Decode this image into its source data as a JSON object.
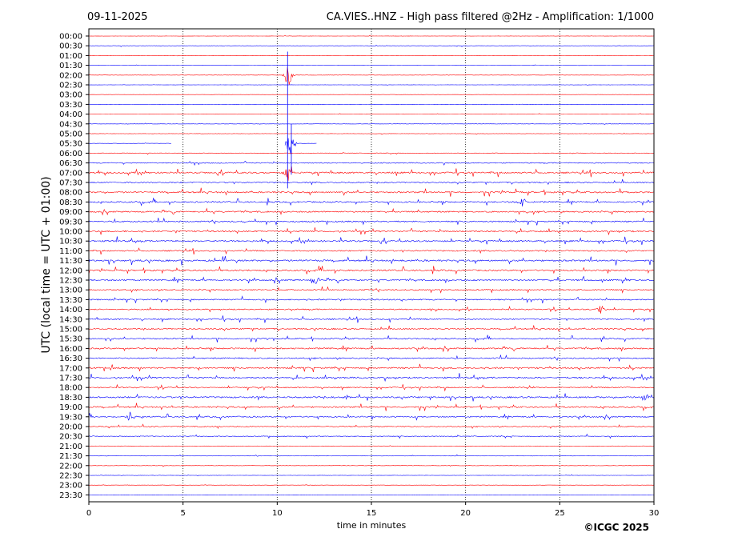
{
  "header": {
    "date": "09-11-2025",
    "title": "CA.VIES..HNZ - High pass filtered @2Hz - Amplification: 1/1000"
  },
  "footer": {
    "copyright": "©ICGC 2025"
  },
  "colors": {
    "odd": "#ff0000",
    "even": "#0000ff",
    "grid": "#000000"
  },
  "chart_data": {
    "type": "line",
    "title": "CA.VIES..HNZ - High pass filtered @2Hz - Amplification: 1/1000",
    "xlabel": "time in minutes",
    "ylabel": "UTC (local time = UTC + 01:00)",
    "xlim": [
      0,
      30
    ],
    "x_ticks": [
      "0",
      "5",
      "10",
      "15",
      "20",
      "25",
      "30"
    ],
    "grid": "vertical dotted at 5-minute intervals",
    "row_labels": [
      "00:00",
      "00:30",
      "01:00",
      "01:30",
      "02:00",
      "02:30",
      "03:00",
      "03:30",
      "04:00",
      "04:30",
      "05:00",
      "05:30",
      "06:00",
      "06:30",
      "07:00",
      "07:30",
      "08:00",
      "08:30",
      "09:00",
      "09:30",
      "10:00",
      "10:30",
      "11:00",
      "11:30",
      "12:00",
      "12:30",
      "13:00",
      "13:30",
      "14:00",
      "14:30",
      "15:00",
      "15:30",
      "16:00",
      "16:30",
      "17:00",
      "17:30",
      "18:00",
      "18:30",
      "19:00",
      "19:30",
      "20:00",
      "20:30",
      "21:00",
      "21:30",
      "22:00",
      "22:30",
      "23:00",
      "23:30"
    ],
    "row_activity": [
      0.1,
      0.12,
      0.06,
      0.08,
      0.1,
      0.1,
      0.06,
      0.06,
      0.1,
      0.1,
      0.14,
      0.08,
      0.2,
      0.35,
      0.55,
      0.45,
      0.55,
      0.5,
      0.5,
      0.5,
      0.55,
      0.55,
      0.45,
      0.6,
      0.55,
      0.55,
      0.45,
      0.45,
      0.4,
      0.45,
      0.45,
      0.45,
      0.5,
      0.45,
      0.55,
      0.55,
      0.4,
      0.55,
      0.5,
      0.45,
      0.35,
      0.3,
      0.15,
      0.15,
      0.12,
      0.12,
      0.08,
      0.06
    ],
    "gaps": [
      {
        "row": "05:30",
        "from_minute": 4.4,
        "to_minute": 10.4
      },
      {
        "row": "05:30",
        "from_minute": 12.1,
        "to_minute": 30.0
      }
    ],
    "events": [
      {
        "row": "07:00",
        "minute": 10.6,
        "amplitude": "large"
      },
      {
        "row": "05:30",
        "minute": 10.7,
        "amplitude": "large"
      },
      {
        "row": "02:00",
        "minute": 10.6,
        "amplitude": "large"
      },
      {
        "row": "08:30",
        "minute": 23.0,
        "amplitude": "medium"
      },
      {
        "row": "12:30",
        "minute": 12.0,
        "amplitude": "medium"
      },
      {
        "row": "18:30",
        "minute": 29.5,
        "amplitude": "medium"
      },
      {
        "row": "19:30",
        "minute": 2.2,
        "amplitude": "medium"
      },
      {
        "row": "14:00",
        "minute": 27.2,
        "amplitude": "medium"
      }
    ]
  }
}
